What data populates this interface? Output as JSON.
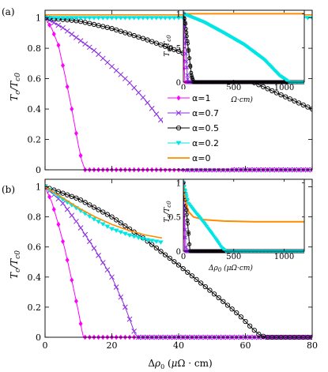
{
  "panel_labels": [
    "(a)",
    "(b)"
  ],
  "colors": {
    "a1": "#ff00ff",
    "a07": "#8b2be2",
    "a05": "#000000",
    "a02": "#00e5e5",
    "a0": "#ff8c00"
  },
  "legend": {
    "items": [
      "α=1",
      "α=0.7",
      "α=0.5",
      "α=0.2",
      "α=0"
    ]
  },
  "chart_data": [
    {
      "type": "line",
      "panel": "(a)",
      "xlabel": "",
      "ylabel": "Tc/Tc0",
      "xlim": [
        0,
        80
      ],
      "ylim": [
        0,
        1.05
      ],
      "y_ticks": [
        "0",
        "0.2",
        "0.4",
        "0.6",
        "0.8",
        "1"
      ],
      "series": [
        {
          "name": "α=1",
          "color": "#ff00ff",
          "marker": "diamond",
          "x": [
            0,
            2,
            4,
            6,
            8,
            10,
            11,
            12,
            14,
            20,
            40,
            60,
            80
          ],
          "y": [
            1.0,
            0.93,
            0.82,
            0.62,
            0.4,
            0.16,
            0.06,
            0.0,
            0.0,
            0.0,
            0.0,
            0.0,
            0.0
          ]
        },
        {
          "name": "α=0.7",
          "color": "#8b2be2",
          "marker": "x",
          "x": [
            0,
            5,
            10,
            15,
            20,
            25,
            30,
            35,
            38,
            40,
            41,
            42,
            45,
            60,
            80
          ],
          "y": [
            1.0,
            0.94,
            0.86,
            0.78,
            0.68,
            0.58,
            0.46,
            0.32,
            0.2,
            0.07,
            0.01,
            0.0,
            0.0,
            0.0,
            0.0
          ]
        },
        {
          "name": "α=0.5",
          "color": "#000000",
          "marker": "circle",
          "x": [
            0,
            10,
            20,
            30,
            40,
            50,
            60,
            70,
            80
          ],
          "y": [
            1.0,
            0.98,
            0.93,
            0.86,
            0.78,
            0.69,
            0.6,
            0.5,
            0.4
          ]
        },
        {
          "name": "α=0.2",
          "color": "#00e5e5",
          "marker": "triangle-down",
          "x": [
            0,
            20,
            40,
            60,
            80
          ],
          "y": [
            1.0,
            1.0,
            1.0,
            1.0,
            1.0
          ]
        },
        {
          "name": "α=0",
          "color": "#ff8c00",
          "marker": "none",
          "x": [
            0,
            80
          ],
          "y": [
            1.02,
            1.02
          ]
        }
      ],
      "inset": {
        "xlabel": "Δρ0 (μΩ·cm)",
        "ylabel": "Tc/Tc0",
        "x_ticks": [
          "0",
          "500",
          "1000"
        ],
        "y_ticks": [
          "0",
          "0.5",
          "1"
        ],
        "xlim": [
          0,
          1200
        ],
        "ylim": [
          0,
          1.05
        ],
        "series": [
          {
            "name": "α=1",
            "x": [
              0,
              5,
              10,
              15,
              1200
            ],
            "y": [
              1.0,
              0.6,
              0.2,
              0.0,
              0.0
            ]
          },
          {
            "name": "α=0.7",
            "x": [
              0,
              15,
              30,
              45,
              1200
            ],
            "y": [
              1.0,
              0.7,
              0.3,
              0.0,
              0.0
            ]
          },
          {
            "name": "α=0.5",
            "x": [
              0,
              20,
              40,
              60,
              80,
              100,
              1200
            ],
            "y": [
              1.0,
              0.85,
              0.6,
              0.35,
              0.1,
              0.0,
              0.0
            ]
          },
          {
            "name": "α=0.2",
            "x": [
              0,
              200,
              400,
              600,
              800,
              950,
              1050,
              1100,
              1200
            ],
            "y": [
              1.0,
              0.88,
              0.72,
              0.55,
              0.33,
              0.1,
              0.0,
              0.0,
              0.0
            ]
          },
          {
            "name": "α=0",
            "x": [
              0,
              1200
            ],
            "y": [
              1.0,
              1.0
            ]
          }
        ]
      }
    },
    {
      "type": "line",
      "panel": "(b)",
      "xlabel": "Δρ0 (μΩ·cm)",
      "ylabel": "Tc/Tc0",
      "xlim": [
        0,
        80
      ],
      "ylim": [
        0,
        1.05
      ],
      "x_ticks": [
        "0",
        "20",
        "40",
        "60",
        "80"
      ],
      "y_ticks": [
        "0",
        "0.2",
        "0.4",
        "0.6",
        "0.8",
        "1"
      ],
      "series": [
        {
          "name": "α=1",
          "color": "#ff00ff",
          "marker": "diamond",
          "x": [
            0,
            2,
            4,
            6,
            8,
            10,
            11,
            11.5,
            12,
            14,
            20,
            40,
            60,
            80
          ],
          "y": [
            1.0,
            0.9,
            0.75,
            0.58,
            0.38,
            0.17,
            0.05,
            0.0,
            0.0,
            0.0,
            0.0,
            0.0,
            0.0,
            0.0
          ]
        },
        {
          "name": "α=0.7",
          "color": "#8b2be2",
          "marker": "x",
          "x": [
            0,
            5,
            10,
            15,
            20,
            24,
            26,
            27,
            28,
            30,
            40,
            60,
            80
          ],
          "y": [
            1.0,
            0.9,
            0.75,
            0.58,
            0.4,
            0.2,
            0.08,
            0.02,
            0.0,
            0.0,
            0.0,
            0.0,
            0.0
          ]
        },
        {
          "name": "α=0.5",
          "color": "#000000",
          "marker": "circle",
          "x": [
            0,
            10,
            20,
            30,
            40,
            50,
            58,
            62,
            64,
            66,
            70,
            80
          ],
          "y": [
            1.0,
            0.92,
            0.8,
            0.65,
            0.48,
            0.3,
            0.15,
            0.06,
            0.02,
            0.0,
            0.0,
            0.0
          ]
        },
        {
          "name": "α=0.2",
          "color": "#00e5e5",
          "marker": "triangle-down",
          "x": [
            0,
            5,
            10,
            15,
            20,
            25,
            30,
            35
          ],
          "y": [
            1.0,
            0.92,
            0.85,
            0.78,
            0.72,
            0.68,
            0.65,
            0.63
          ]
        },
        {
          "name": "α=0",
          "color": "#ff8c00",
          "marker": "none",
          "x": [
            0,
            5,
            10,
            15,
            20,
            25,
            30,
            35
          ],
          "y": [
            1.0,
            0.93,
            0.86,
            0.8,
            0.75,
            0.71,
            0.68,
            0.66
          ]
        }
      ],
      "inset": {
        "xlabel": "Δρ0 (μΩ·cm)",
        "ylabel": "Tc/Tc0",
        "x_ticks": [
          "0",
          "500",
          "1000"
        ],
        "y_ticks": [
          "0",
          "0.5",
          "1"
        ],
        "xlim": [
          0,
          1200
        ],
        "ylim": [
          0,
          1.05
        ],
        "series": [
          {
            "name": "α=1",
            "x": [
              0,
              5,
              10,
              12,
              1200
            ],
            "y": [
              1.0,
              0.6,
              0.2,
              0.0,
              0.0
            ]
          },
          {
            "name": "α=0.7",
            "x": [
              0,
              10,
              20,
              28,
              1200
            ],
            "y": [
              1.0,
              0.6,
              0.2,
              0.0,
              0.0
            ]
          },
          {
            "name": "α=0.5",
            "x": [
              0,
              20,
              40,
              60,
              66,
              1200
            ],
            "y": [
              1.0,
              0.75,
              0.45,
              0.1,
              0.0,
              0.0
            ]
          },
          {
            "name": "α=0.2",
            "x": [
              0,
              50,
              100,
              200,
              300,
              380,
              420,
              500,
              1200
            ],
            "y": [
              1.0,
              0.7,
              0.6,
              0.42,
              0.22,
              0.05,
              0.0,
              0.0,
              0.0
            ]
          },
          {
            "name": "α=0",
            "x": [
              0,
              20,
              50,
              100,
              200,
              400,
              700,
              1000,
              1200
            ],
            "y": [
              1.0,
              0.75,
              0.58,
              0.5,
              0.46,
              0.44,
              0.43,
              0.43,
              0.43
            ]
          }
        ]
      }
    }
  ]
}
